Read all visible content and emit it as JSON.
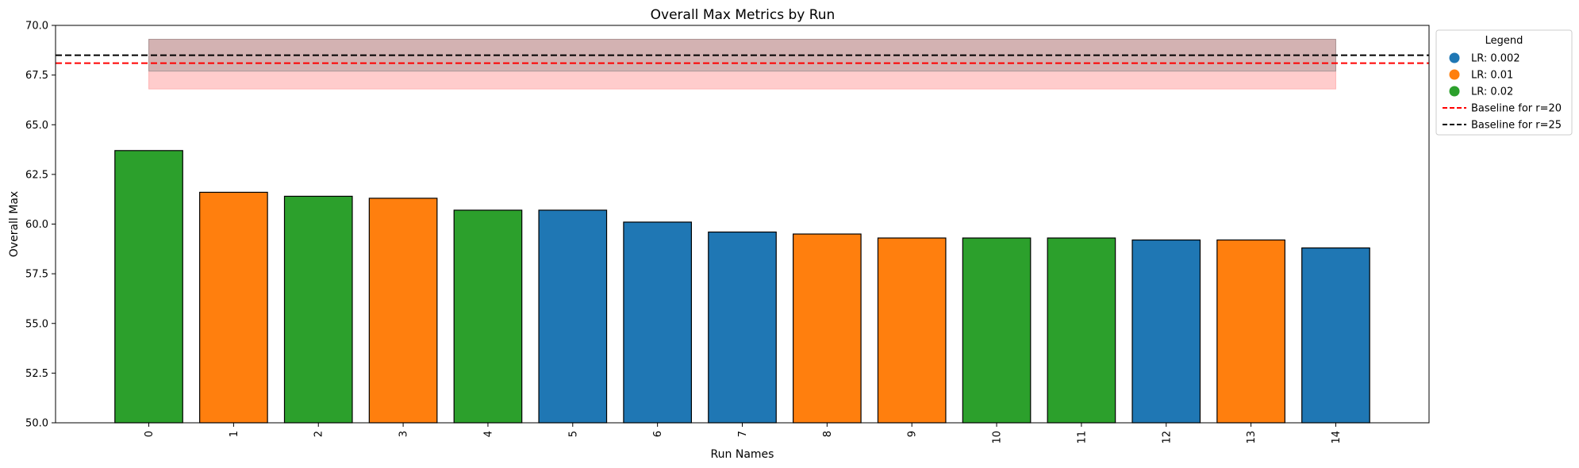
{
  "chart_data": {
    "type": "bar",
    "title": "Overall Max Metrics by Run",
    "xlabel": "Run Names",
    "ylabel": "Overall Max",
    "ylim": [
      50,
      70
    ],
    "yticks": [
      "50.0",
      "52.5",
      "55.0",
      "57.5",
      "60.0",
      "62.5",
      "65.0",
      "67.5",
      "70.0"
    ],
    "categories": [
      "0",
      "1",
      "2",
      "3",
      "4",
      "5",
      "6",
      "7",
      "8",
      "9",
      "10",
      "11",
      "12",
      "13",
      "14"
    ],
    "values": [
      63.7,
      61.6,
      61.4,
      61.3,
      60.7,
      60.7,
      60.1,
      59.6,
      59.5,
      59.3,
      59.3,
      59.3,
      59.2,
      59.2,
      58.8
    ],
    "groups": [
      "LR: 0.02",
      "LR: 0.01",
      "LR: 0.02",
      "LR: 0.01",
      "LR: 0.02",
      "LR: 0.002",
      "LR: 0.002",
      "LR: 0.002",
      "LR: 0.01",
      "LR: 0.01",
      "LR: 0.02",
      "LR: 0.02",
      "LR: 0.002",
      "LR: 0.01",
      "LR: 0.002"
    ],
    "group_colors": {
      "LR: 0.002": "#1f77b4",
      "LR: 0.01": "#ff7f0e",
      "LR: 0.02": "#2ca02c"
    },
    "baselines": [
      {
        "name": "Baseline for r=20",
        "value": 68.1,
        "band": [
          66.8,
          69.3
        ],
        "color": "#ff0000",
        "band_color": "#ff9999"
      },
      {
        "name": "Baseline for r=25",
        "value": 68.5,
        "band": [
          67.7,
          69.3
        ],
        "color": "#000000",
        "band_color": "#808080"
      }
    ],
    "band_x_range": [
      "0",
      "14"
    ],
    "legend": {
      "title": "Legend",
      "placement": "outside-top-right",
      "entries": [
        {
          "label": "LR: 0.002",
          "kind": "dot",
          "color": "#1f77b4"
        },
        {
          "label": "LR: 0.01",
          "kind": "dot",
          "color": "#ff7f0e"
        },
        {
          "label": "LR: 0.02",
          "kind": "dot",
          "color": "#2ca02c"
        },
        {
          "label": "Baseline for r=20",
          "kind": "dashed-line",
          "color": "#ff0000"
        },
        {
          "label": "Baseline for r=25",
          "kind": "dashed-line",
          "color": "#000000"
        }
      ]
    },
    "grid": false
  }
}
